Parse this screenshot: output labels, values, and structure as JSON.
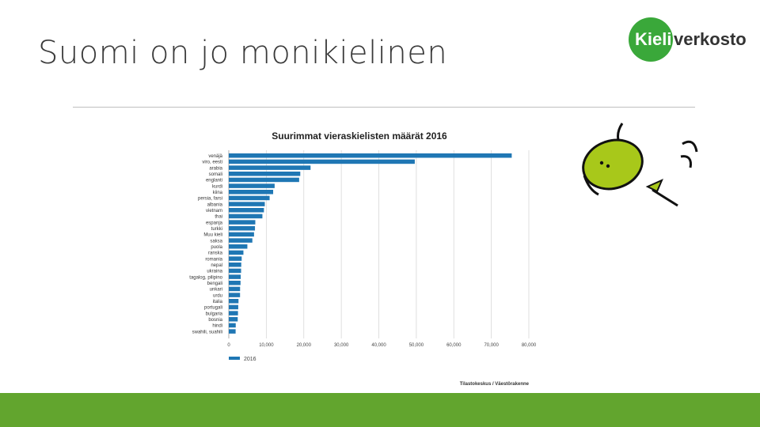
{
  "slide": {
    "title": "Suomi on jo monikielinen",
    "logo_part1": "Kieli",
    "logo_part2": "verkosto"
  },
  "colors": {
    "bar": "#1f77b4",
    "logo_green": "#3aa83a",
    "footer_green": "#62a52e",
    "footer_light": "#8cc43f",
    "mascot_green": "#a8c81a"
  },
  "chart_data": {
    "type": "bar",
    "orientation": "horizontal",
    "title": "Suurimmat vieraskielisten määrät 2016",
    "categories": [
      "venäjä",
      "viro, eesti",
      "arabia",
      "somali",
      "englanti",
      "kurdi",
      "kiina",
      "persia, farsi",
      "albania",
      "vietnam",
      "thai",
      "espanja",
      "turkki",
      "Muu kieli",
      "saksa",
      "puola",
      "ranska",
      "romania",
      "nepal",
      "ukraina",
      "tagalog, pilipino",
      "bengali",
      "unkari",
      "urdu",
      "italia",
      "portugali",
      "bulgaria",
      "bosnia",
      "hindi",
      "swahili, suahili"
    ],
    "series": [
      {
        "name": "2016",
        "values": [
          75440,
          49590,
          21800,
          19060,
          18760,
          12220,
          11830,
          10880,
          9600,
          9370,
          8960,
          7070,
          6980,
          6730,
          6280,
          4950,
          3900,
          3440,
          3320,
          3280,
          3180,
          3130,
          3010,
          3000,
          2590,
          2520,
          2450,
          2380,
          1850,
          1820
        ]
      }
    ],
    "xlim": [
      0,
      80000
    ],
    "xticks": [
      "0",
      "10,000",
      "20,000",
      "30,000",
      "40,000",
      "50,000",
      "60,000",
      "70,000",
      "80,000"
    ],
    "grid": true,
    "legend": "bottom-left",
    "source": "Tilastokeskus / Väestörakenne"
  }
}
